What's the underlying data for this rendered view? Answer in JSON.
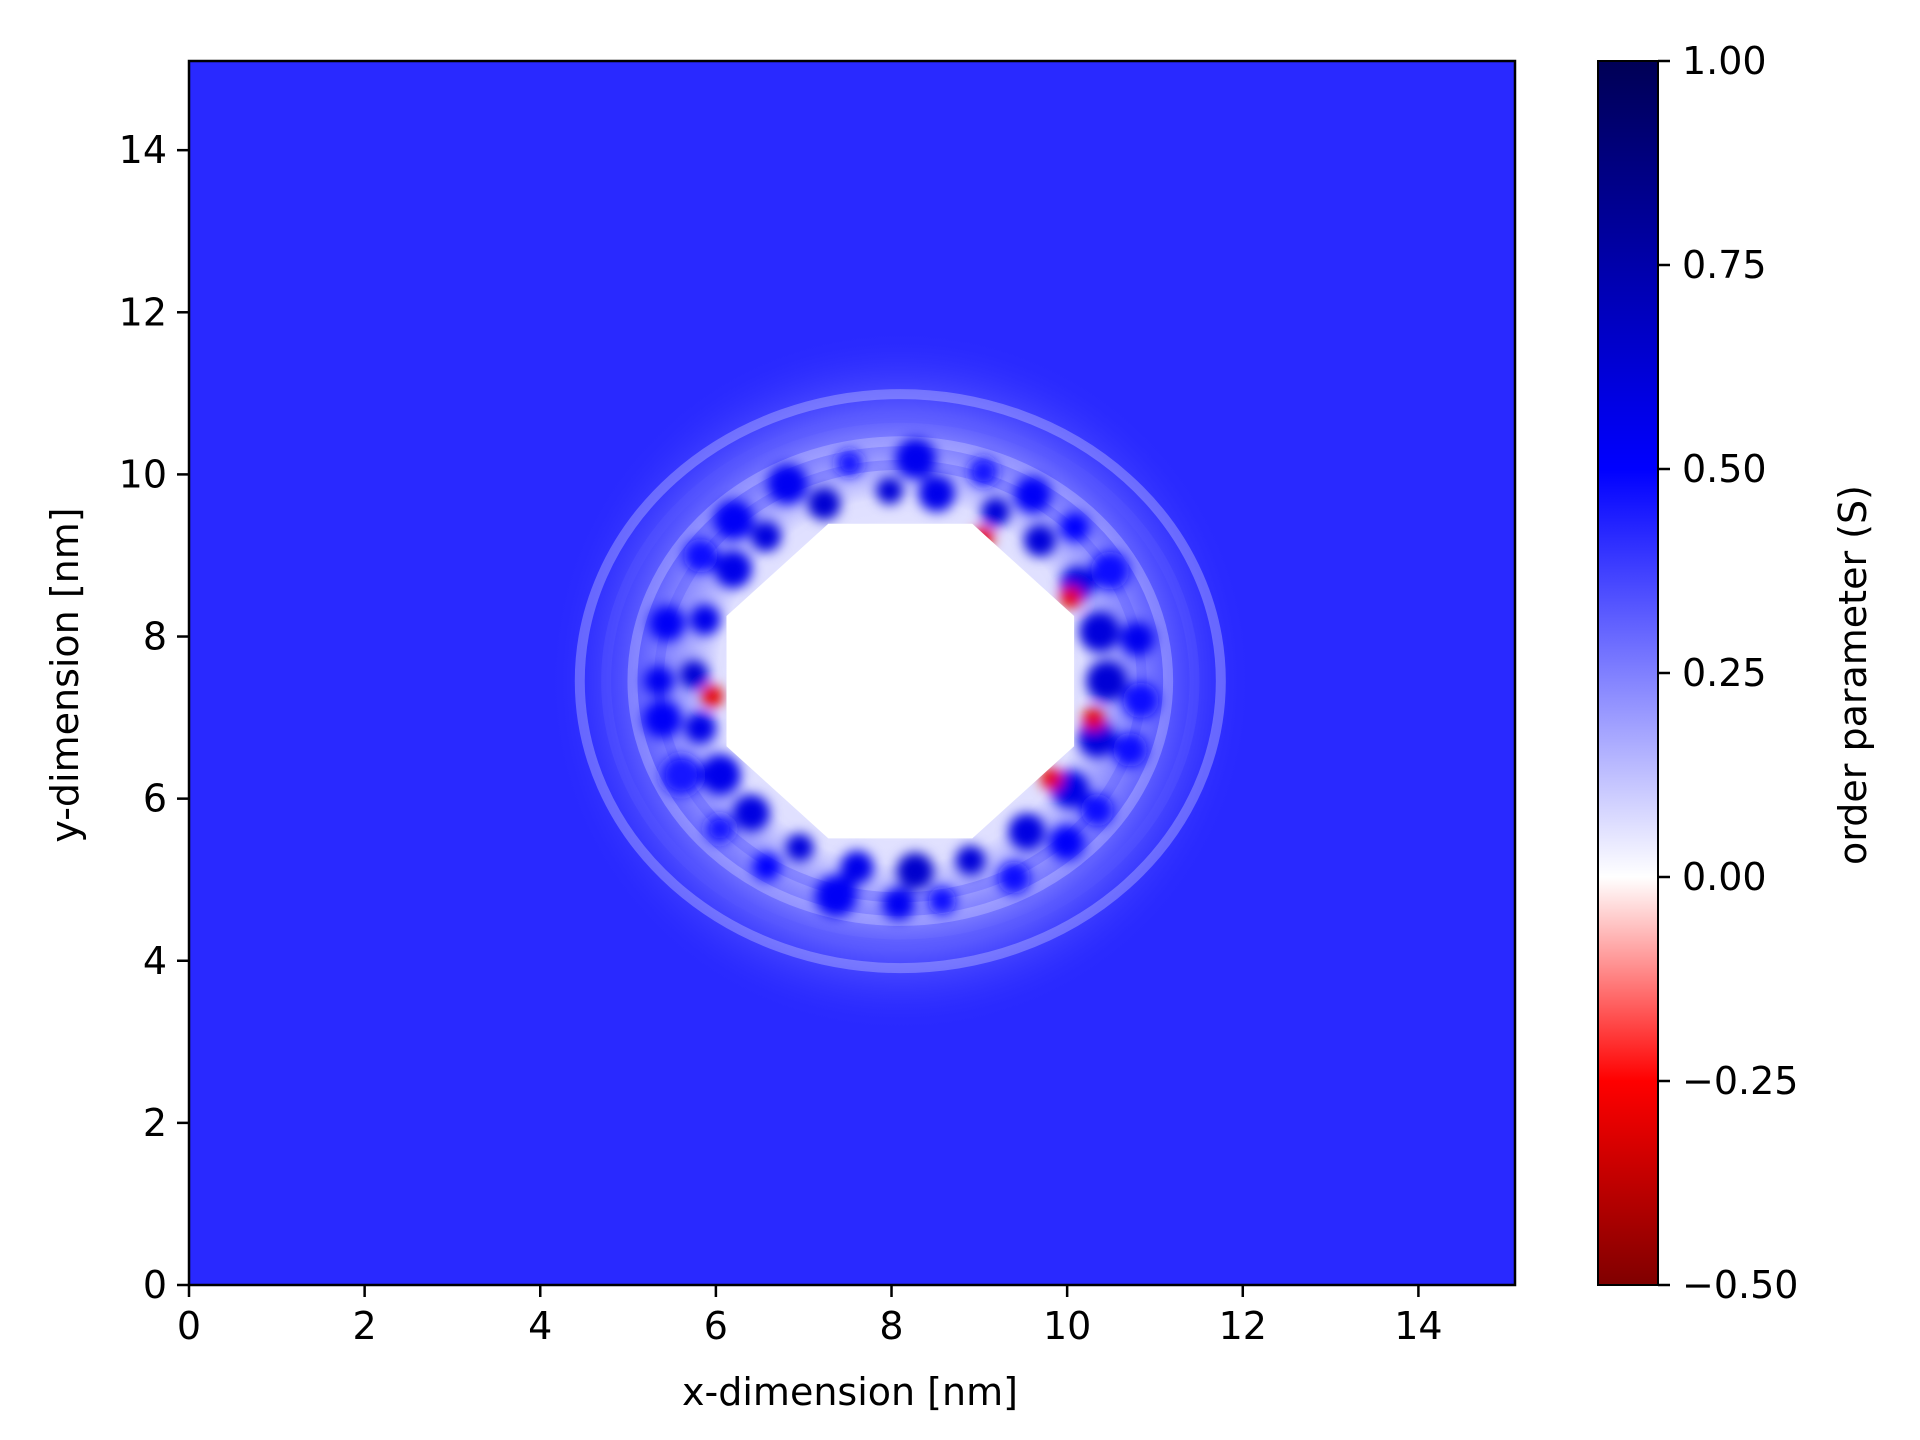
{
  "chart_data": {
    "type": "heatmap",
    "title": "",
    "xlabel": "x-dimension [nm]",
    "ylabel": "y-dimension [nm]",
    "xlim": [
      0,
      15.1
    ],
    "ylim": [
      0,
      15.1
    ],
    "x_ticks": [
      0,
      2,
      4,
      6,
      8,
      10,
      12,
      14
    ],
    "y_ticks": [
      0,
      2,
      4,
      6,
      8,
      10,
      12,
      14
    ],
    "x_tick_labels": [
      "0",
      "2",
      "4",
      "6",
      "8",
      "10",
      "12",
      "14"
    ],
    "y_tick_labels": [
      "0",
      "2",
      "4",
      "6",
      "8",
      "10",
      "12",
      "14"
    ],
    "bulk_value": 0.42,
    "masked_region": {
      "shape": "octagon",
      "center_x": 8.1,
      "center_y": 7.45,
      "radius_x": 2.1,
      "radius_y": 2.1
    },
    "interface_shell": {
      "center_x": 8.1,
      "center_y": 7.45,
      "inner_radius": 2.1,
      "outer_radius": 4.0,
      "min_value": -0.3,
      "max_value": 0.65
    },
    "colorbar": {
      "label": "order parameter (S)",
      "label_symbol": "S",
      "min": -0.5,
      "max": 1.0,
      "ticks": [
        -0.5,
        -0.25,
        0.0,
        0.25,
        0.5,
        0.75,
        1.0
      ],
      "tick_labels": [
        "−0.50",
        "−0.25",
        "0.00",
        "0.25",
        "0.50",
        "0.75",
        "1.00"
      ],
      "colormap": "seismic_r",
      "colormap_stops": [
        {
          "value": -0.5,
          "color": "#800000"
        },
        {
          "value": -0.25,
          "color": "#ff0000"
        },
        {
          "value": 0.0,
          "color": "#ffffff"
        },
        {
          "value": 0.5,
          "color": "#0000ff"
        },
        {
          "value": 1.0,
          "color": "#000055"
        }
      ]
    },
    "grid": false,
    "legend": "none"
  }
}
